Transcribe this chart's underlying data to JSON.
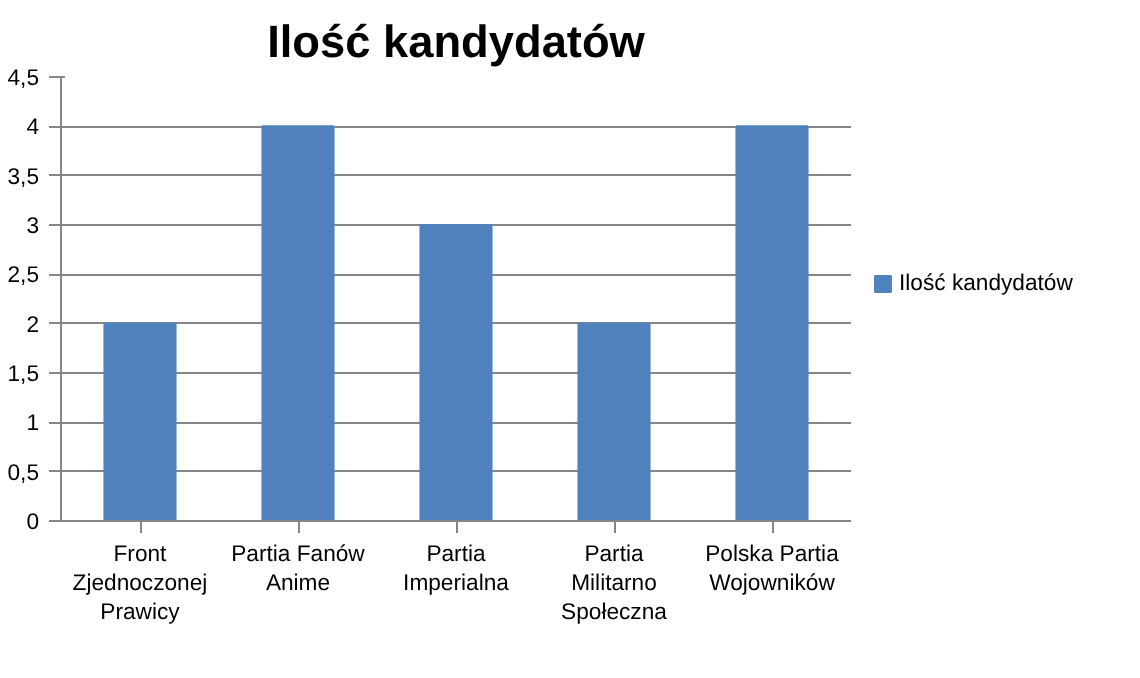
{
  "chart_data": {
    "type": "bar",
    "title": "Ilość kandydatów",
    "categories": [
      "Front Zjednoczonej Prawicy",
      "Partia Fanów Anime",
      "Partia Imperialna",
      "Partia Militarno Społeczna",
      "Polska Partia Wojowników"
    ],
    "series": [
      {
        "name": "Ilość kandydatów",
        "color": "#4f81bd",
        "values": [
          2,
          4,
          3,
          2,
          4
        ]
      }
    ],
    "ylim": [
      0,
      4.5
    ],
    "yticks": [
      0,
      {
        "value": 0.5,
        "label": "0,5"
      },
      1,
      {
        "value": 1.5,
        "label": "1,5"
      },
      2,
      {
        "value": 2.5,
        "label": "2,5"
      },
      3,
      {
        "value": 3.5,
        "label": "3,5"
      },
      4,
      {
        "value": 4.5,
        "label": "4,5"
      }
    ],
    "grid": "y",
    "legend": "right"
  }
}
